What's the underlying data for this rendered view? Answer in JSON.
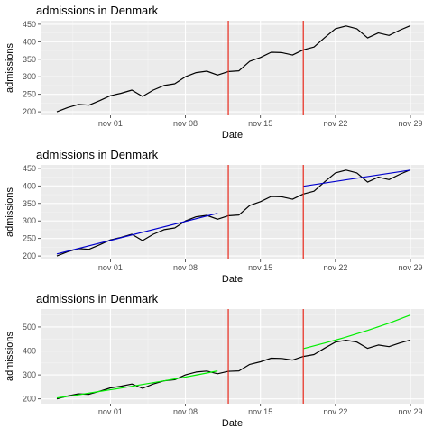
{
  "chart_data": [
    {
      "type": "line",
      "title": "admissions in Denmark",
      "xlabel": "Date",
      "ylabel": "admissions",
      "x_ticks": [
        "nov 01",
        "nov 08",
        "nov 15",
        "nov 22",
        "nov 29"
      ],
      "y_ticks": [
        200,
        250,
        300,
        350,
        400,
        450
      ],
      "ylim": [
        190,
        460
      ],
      "grid": true,
      "x": [
        "oct 27",
        "oct 28",
        "oct 29",
        "oct 30",
        "oct 31",
        "nov 01",
        "nov 02",
        "nov 03",
        "nov 04",
        "nov 05",
        "nov 06",
        "nov 07",
        "nov 08",
        "nov 09",
        "nov 10",
        "nov 11",
        "nov 12",
        "nov 13",
        "nov 14",
        "nov 15",
        "nov 16",
        "nov 17",
        "nov 18",
        "nov 19",
        "nov 20",
        "nov 21",
        "nov 22",
        "nov 23",
        "nov 24",
        "nov 25",
        "nov 26",
        "nov 27",
        "nov 28",
        "nov 29"
      ],
      "series": [
        {
          "values": [
            200,
            212,
            221,
            219,
            232,
            246,
            253,
            262,
            244,
            262,
            275,
            280,
            300,
            312,
            316,
            305,
            315,
            317,
            344,
            355,
            370,
            369,
            362,
            377,
            385,
            412,
            437,
            445,
            437,
            411,
            425,
            418,
            433,
            446
          ],
          "color": "#000000"
        }
      ],
      "vlines": [
        "nov 12",
        "nov 19"
      ],
      "vline_color": "#e8291c"
    },
    {
      "type": "line",
      "title": "admissions in Denmark",
      "xlabel": "Date",
      "ylabel": "admissions",
      "x_ticks": [
        "nov 01",
        "nov 08",
        "nov 15",
        "nov 22",
        "nov 29"
      ],
      "y_ticks": [
        200,
        250,
        300,
        350,
        400,
        450
      ],
      "ylim": [
        190,
        460
      ],
      "grid": true,
      "x": [
        "oct 27",
        "oct 28",
        "oct 29",
        "oct 30",
        "oct 31",
        "nov 01",
        "nov 02",
        "nov 03",
        "nov 04",
        "nov 05",
        "nov 06",
        "nov 07",
        "nov 08",
        "nov 09",
        "nov 10",
        "nov 11",
        "nov 12",
        "nov 13",
        "nov 14",
        "nov 15",
        "nov 16",
        "nov 17",
        "nov 18",
        "nov 19",
        "nov 20",
        "nov 21",
        "nov 22",
        "nov 23",
        "nov 24",
        "nov 25",
        "nov 26",
        "nov 27",
        "nov 28",
        "nov 29"
      ],
      "series": [
        {
          "values": [
            200,
            212,
            221,
            219,
            232,
            246,
            253,
            262,
            244,
            262,
            275,
            280,
            300,
            312,
            316,
            305,
            315,
            317,
            344,
            355,
            370,
            369,
            362,
            377,
            385,
            412,
            437,
            445,
            437,
            411,
            425,
            418,
            433,
            446
          ],
          "color": "#000000"
        },
        {
          "x": [
            "oct 27",
            "nov 11"
          ],
          "values": [
            206,
            322
          ],
          "color": "#0000cc"
        },
        {
          "x": [
            "nov 19",
            "nov 29"
          ],
          "values": [
            399,
            445
          ],
          "color": "#0000cc"
        }
      ],
      "vlines": [
        "nov 12",
        "nov 19"
      ],
      "vline_color": "#e8291c"
    },
    {
      "type": "line",
      "title": "admissions in Denmark",
      "xlabel": "Date",
      "ylabel": "admissions",
      "x_ticks": [
        "nov 01",
        "nov 08",
        "nov 15",
        "nov 22",
        "nov 29"
      ],
      "y_ticks": [
        200,
        300,
        400,
        500
      ],
      "ylim": [
        180,
        575
      ],
      "grid": true,
      "x": [
        "oct 27",
        "oct 28",
        "oct 29",
        "oct 30",
        "oct 31",
        "nov 01",
        "nov 02",
        "nov 03",
        "nov 04",
        "nov 05",
        "nov 06",
        "nov 07",
        "nov 08",
        "nov 09",
        "nov 10",
        "nov 11",
        "nov 12",
        "nov 13",
        "nov 14",
        "nov 15",
        "nov 16",
        "nov 17",
        "nov 18",
        "nov 19",
        "nov 20",
        "nov 21",
        "nov 22",
        "nov 23",
        "nov 24",
        "nov 25",
        "nov 26",
        "nov 27",
        "nov 28",
        "nov 29"
      ],
      "series": [
        {
          "values": [
            200,
            212,
            221,
            219,
            232,
            246,
            253,
            262,
            244,
            262,
            275,
            280,
            300,
            312,
            316,
            305,
            315,
            317,
            344,
            355,
            370,
            369,
            362,
            377,
            385,
            412,
            437,
            445,
            437,
            411,
            425,
            418,
            433,
            446
          ],
          "color": "#000000"
        },
        {
          "x": [
            "oct 27",
            "oct 29",
            "oct 31",
            "nov 02",
            "nov 04",
            "nov 06",
            "nov 08",
            "nov 10",
            "nov 11"
          ],
          "values": [
            204,
            217,
            231,
            245,
            260,
            275,
            291,
            308,
            317
          ],
          "color": "#00ee00"
        },
        {
          "x": [
            "nov 19",
            "nov 21",
            "nov 23",
            "nov 25",
            "nov 27",
            "nov 29"
          ],
          "values": [
            410,
            433,
            458,
            486,
            516,
            550
          ],
          "color": "#00ee00"
        }
      ],
      "vlines": [
        "nov 12",
        "nov 19"
      ],
      "vline_color": "#e8291c"
    }
  ]
}
